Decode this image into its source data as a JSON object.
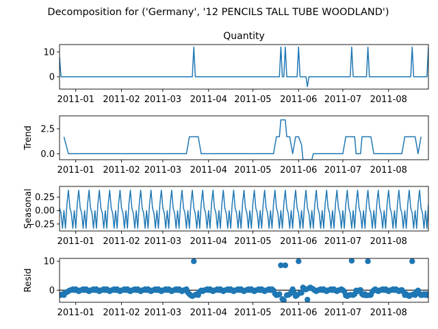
{
  "figure_title": "Decomposition for ('Germany', '12 PENCILS TALL TUBE WOODLAND')",
  "line_color": "#1f77b4",
  "chart_data": [
    {
      "type": "line",
      "panel": "observed",
      "title": "Quantity",
      "ylabel": "",
      "ylim": [
        -5,
        13
      ],
      "yticks": [
        0,
        10
      ],
      "ytick_labels": [
        "0",
        "10"
      ],
      "xlim": [
        "2010-12-21",
        "2011-08-28"
      ],
      "xticks": [
        "2011-01-01",
        "2011-02-01",
        "2011-03-01",
        "2011-04-01",
        "2011-05-01",
        "2011-06-01",
        "2011-07-01",
        "2011-08-01"
      ],
      "xtick_labels": [
        "2011-01",
        "2011-02",
        "2011-03",
        "2011-04",
        "2011-05",
        "2011-06",
        "2011-07",
        "2011-08"
      ],
      "base_value": 0,
      "start": "2010-12-21",
      "end": "2011-08-28",
      "points": [
        [
          "2010-12-21",
          8
        ],
        [
          "2011-03-22",
          12
        ],
        [
          "2011-05-20",
          12
        ],
        [
          "2011-05-23",
          12
        ],
        [
          "2011-06-01",
          12
        ],
        [
          "2011-06-07",
          -4
        ],
        [
          "2011-07-07",
          12
        ],
        [
          "2011-07-18",
          12
        ],
        [
          "2011-08-17",
          12
        ],
        [
          "2011-08-28",
          12
        ]
      ]
    },
    {
      "type": "line",
      "panel": "trend",
      "title": "",
      "ylabel": "Trend",
      "ylim": [
        -0.6,
        3.8
      ],
      "yticks": [
        0.0,
        2.5
      ],
      "ytick_labels": [
        "0.0",
        "2.5"
      ],
      "xlim": [
        "2010-12-21",
        "2011-08-28"
      ],
      "xticks": [
        "2011-01-01",
        "2011-02-01",
        "2011-03-01",
        "2011-04-01",
        "2011-05-01",
        "2011-06-01",
        "2011-07-01",
        "2011-08-01"
      ],
      "xtick_labels": [
        "2011-01",
        "2011-02",
        "2011-03",
        "2011-04",
        "2011-05",
        "2011-06",
        "2011-07",
        "2011-08"
      ],
      "x": [
        "2010-12-24",
        "2010-12-27",
        "2011-03-17",
        "2011-03-19",
        "2011-03-25",
        "2011-03-27",
        "2011-05-15",
        "2011-05-17",
        "2011-05-19",
        "2011-05-20",
        "2011-05-23",
        "2011-05-24",
        "2011-05-26",
        "2011-05-28",
        "2011-05-30",
        "2011-06-01",
        "2011-06-03",
        "2011-06-04",
        "2011-06-10",
        "2011-06-11",
        "2011-07-01",
        "2011-07-03",
        "2011-07-09",
        "2011-07-10",
        "2011-07-13",
        "2011-07-14",
        "2011-07-20",
        "2011-07-22",
        "2011-08-10",
        "2011-08-12",
        "2011-08-19",
        "2011-08-21",
        "2011-08-23"
      ],
      "values": [
        1.7,
        0,
        0,
        1.7,
        1.7,
        0,
        0,
        1.7,
        1.7,
        3.4,
        3.4,
        1.7,
        1.7,
        0,
        1.7,
        1.7,
        0.9,
        -0.6,
        -0.6,
        0,
        0,
        1.7,
        1.7,
        0,
        0,
        1.7,
        1.7,
        0,
        0,
        1.7,
        1.7,
        0,
        1.7
      ]
    },
    {
      "type": "line",
      "panel": "seasonal",
      "title": "",
      "ylabel": "Seasonal",
      "ylim": [
        -0.38,
        0.45
      ],
      "yticks": [
        -0.25,
        0.0,
        0.25
      ],
      "ytick_labels": [
        "−0.25",
        "0.00",
        "0.25"
      ],
      "xlim": [
        "2010-12-21",
        "2011-08-28"
      ],
      "xticks": [
        "2011-01-01",
        "2011-02-01",
        "2011-03-01",
        "2011-04-01",
        "2011-05-01",
        "2011-06-01",
        "2011-07-01",
        "2011-08-01"
      ],
      "xtick_labels": [
        "2011-01",
        "2011-02",
        "2011-03",
        "2011-04",
        "2011-05",
        "2011-06",
        "2011-07",
        "2011-08"
      ],
      "start": "2010-12-21",
      "end": "2011-08-28",
      "pattern": [
        0.05,
        -0.05,
        -0.33,
        0.0,
        -0.33,
        0.12,
        0.38
      ]
    },
    {
      "type": "scatter",
      "panel": "resid",
      "title": "",
      "ylabel": "Resid",
      "ylim": [
        -4.2,
        11
      ],
      "yticks": [
        0,
        10
      ],
      "ytick_labels": [
        "0",
        "10"
      ],
      "xlim": [
        "2010-12-21",
        "2011-08-28"
      ],
      "xticks": [
        "2011-01-01",
        "2011-02-01",
        "2011-03-01",
        "2011-04-01",
        "2011-05-01",
        "2011-06-01",
        "2011-07-01",
        "2011-08-01"
      ],
      "xtick_labels": [
        "2011-01",
        "2011-02",
        "2011-03",
        "2011-04",
        "2011-05",
        "2011-06",
        "2011-07",
        "2011-08"
      ],
      "zero_line": true,
      "outliers": [
        [
          "2011-03-22",
          10
        ],
        [
          "2011-05-20",
          8.6
        ],
        [
          "2011-05-23",
          8.6
        ],
        [
          "2011-06-01",
          10
        ],
        [
          "2011-06-07",
          -3.3
        ],
        [
          "2011-07-07",
          10.2
        ],
        [
          "2011-07-18",
          10
        ],
        [
          "2011-08-17",
          10
        ]
      ]
    }
  ]
}
